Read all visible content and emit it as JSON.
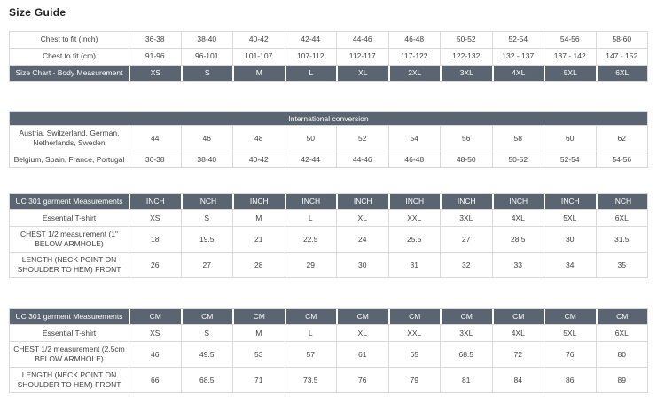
{
  "page_title": "Size Guide",
  "colors": {
    "header_bg": "#5b6571",
    "header_text": "#ffffff",
    "border": "#d9d9d9",
    "cell_text": "#3f3f3f"
  },
  "tables": [
    {
      "id": "body-measurement",
      "rows": [
        {
          "label": "Chest to fit (Inch)",
          "values": [
            "36-38",
            "38-40",
            "40-42",
            "42-44",
            "44-46",
            "46-48",
            "50-52",
            "52-54",
            "54-56",
            "58-60"
          ]
        },
        {
          "label": "Chest to fit (cm)",
          "values": [
            "91-96",
            "96-101",
            "101-107",
            "107-112",
            "112-117",
            "117-122",
            "122-132",
            "132 - 137",
            "137 - 142",
            "147 - 152"
          ]
        }
      ],
      "dark_row": {
        "position": "bottom",
        "label": "Size Chart - Body Measurement",
        "values": [
          "XS",
          "S",
          "M",
          "L",
          "XL",
          "2XL",
          "3XL",
          "4XL",
          "5XL",
          "6XL"
        ]
      }
    },
    {
      "id": "international-conversion",
      "title_bar": "International conversion",
      "rows": [
        {
          "label": "Austria, Switzerland, German, Netherlands, Sweden",
          "values": [
            "44",
            "46",
            "48",
            "50",
            "52",
            "54",
            "56",
            "58",
            "60",
            "62"
          ]
        },
        {
          "label": "Belgium, Spain, France, Portugal",
          "values": [
            "36-38",
            "38-40",
            "40-42",
            "42-44",
            "44-46",
            "46-48",
            "48-50",
            "50-52",
            "52-54",
            "54-56"
          ]
        }
      ]
    },
    {
      "id": "garment-inch",
      "dark_row": {
        "position": "top",
        "label": "UC 301 garment Measurements",
        "values": [
          "INCH",
          "INCH",
          "INCH",
          "INCH",
          "INCH",
          "INCH",
          "INCH",
          "INCH",
          "INCH",
          "INCH"
        ]
      },
      "rows": [
        {
          "label": "Essential T-shirt",
          "values": [
            "XS",
            "S",
            "M",
            "L",
            "XL",
            "XXL",
            "3XL",
            "4XL",
            "5XL",
            "6XL"
          ]
        },
        {
          "label": "CHEST 1/2 measurement (1\" BELOW ARMHOLE)",
          "values": [
            "18",
            "19.5",
            "21",
            "22.5",
            "24",
            "25.5",
            "27",
            "28.5",
            "30",
            "31.5"
          ]
        },
        {
          "label": "LENGTH (NECK POINT ON SHOULDER TO HEM) FRONT",
          "values": [
            "26",
            "27",
            "28",
            "29",
            "30",
            "31",
            "32",
            "33",
            "34",
            "35"
          ]
        }
      ]
    },
    {
      "id": "garment-cm",
      "dark_row": {
        "position": "top",
        "label": "UC 301 garment Measurements",
        "values": [
          "CM",
          "CM",
          "CM",
          "CM",
          "CM",
          "CM",
          "CM",
          "CM",
          "CM",
          "CM"
        ]
      },
      "rows": [
        {
          "label": "Essential T-shirt",
          "values": [
            "XS",
            "S",
            "M",
            "L",
            "XL",
            "XXL",
            "3XL",
            "4XL",
            "5XL",
            "6XL"
          ]
        },
        {
          "label": "CHEST 1/2 measurement (2.5cm BELOW ARMHOLE)",
          "values": [
            "46",
            "49.5",
            "53",
            "57",
            "61",
            "65",
            "68.5",
            "72",
            "76",
            "80"
          ]
        },
        {
          "label": "LENGTH (NECK POINT ON SHOULDER TO HEM) FRONT",
          "values": [
            "66",
            "68.5",
            "71",
            "73.5",
            "76",
            "79",
            "81",
            "84",
            "86",
            "89"
          ]
        }
      ]
    }
  ]
}
